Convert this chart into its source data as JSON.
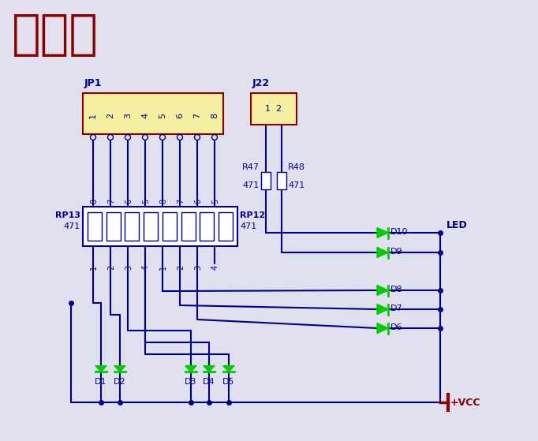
{
  "title": "交通灯",
  "title_color": "#8B0000",
  "bg_color": "#E0E0EE",
  "line_color": "#00008B",
  "led_color": "#00CC00",
  "jp1_label": "JP1",
  "j22_label": "J22",
  "vcc_label": "+VCC",
  "led_label": "LED",
  "jp1_pins": [
    "1",
    "2",
    "3",
    "4",
    "5",
    "6",
    "7",
    "8"
  ],
  "rp_top_labels": [
    "8",
    "7",
    "6",
    "5",
    "8",
    "7",
    "6",
    "5"
  ],
  "rp_bottom_labels": [
    "1",
    "2",
    "3",
    "4",
    "1",
    "2",
    "3",
    "4"
  ],
  "led_right_labels": [
    "D10",
    "D9",
    "D8",
    "D7",
    "D6"
  ],
  "led_bottom_labels": [
    "D1",
    "D2",
    "D3",
    "D4",
    "D5"
  ]
}
